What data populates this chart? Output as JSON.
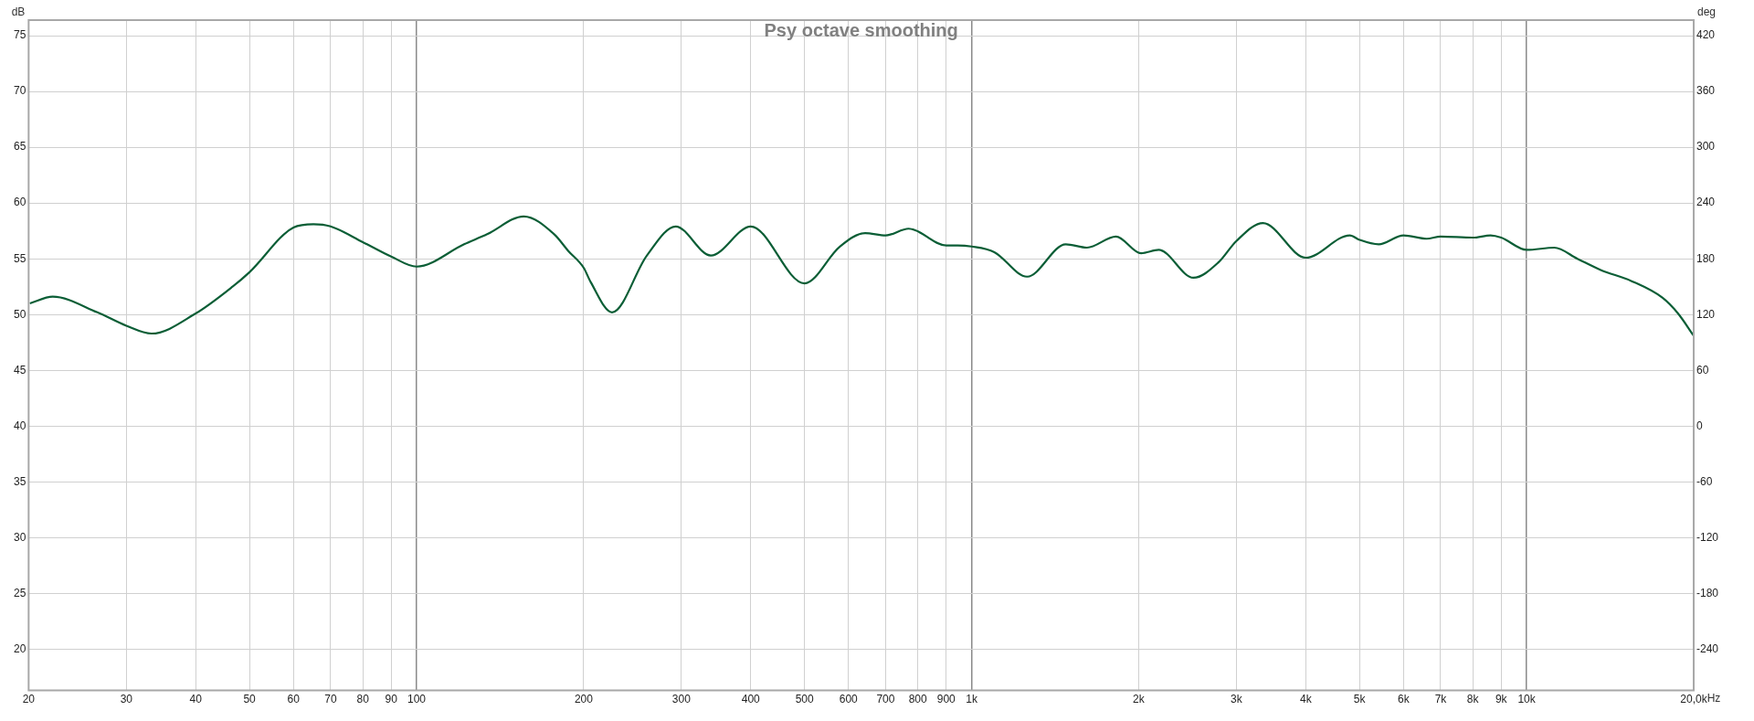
{
  "chart_data": {
    "type": "line",
    "title": "Psy octave smoothing",
    "ylabel": "dB",
    "y2label": "deg",
    "x": [
      20.1,
      22.1,
      26.6,
      30,
      33.3,
      40,
      46.6,
      50,
      60,
      65.2,
      70,
      80,
      90,
      100,
      121.8,
      134,
      156,
      177,
      187.7,
      200,
      206,
      225,
      260,
      293,
      339,
      400,
      500,
      579,
      643,
      700,
      770,
      900,
      944,
      1000,
      1099,
      1259,
      1478,
      1614,
      1820,
      2020,
      2174,
      2510,
      2787,
      3000,
      3350,
      4000,
      4803,
      5000,
      5414,
      6000,
      6608,
      7000,
      8000,
      8610,
      9000,
      10000,
      11220,
      12350,
      13600,
      15460,
      17580,
      18740,
      20000
    ],
    "series": [
      {
        "color": "#0b5e36",
        "values": [
          51.0,
          51.6,
          50.2,
          49.0,
          48.3,
          50.1,
          52.5,
          53.8,
          57.8,
          58.1,
          57.9,
          56.5,
          55.2,
          54.3,
          56.3,
          57.2,
          58.8,
          57.2,
          55.7,
          54.2,
          52.9,
          50.2,
          55.3,
          57.9,
          55.3,
          57.9,
          52.8,
          56.1,
          57.3,
          57.1,
          57.7,
          56.2,
          56.2,
          56.1,
          55.6,
          53.4,
          56.3,
          56.0,
          57.0,
          55.5,
          55.8,
          53.3,
          54.7,
          56.6,
          58.2,
          55.1,
          57.1,
          56.7,
          56.3,
          57.1,
          56.8,
          57.0,
          56.9,
          57.1,
          56.9,
          55.8,
          56.0,
          55.0,
          54.0,
          53.0,
          51.5,
          50.1,
          48.1
        ]
      }
    ],
    "log": "x",
    "grid": true,
    "marker": "none",
    "line_style": "solid",
    "legend": false,
    "xlim": [
      20,
      20000
    ],
    "xticks": [
      20,
      30,
      40,
      50,
      60,
      70,
      80,
      90,
      100,
      200,
      300,
      400,
      500,
      600,
      700,
      800,
      900,
      {
        "value": 1000,
        "label": "1k"
      },
      {
        "value": 2000,
        "label": "2k"
      },
      {
        "value": 3000,
        "label": "3k"
      },
      {
        "value": 4000,
        "label": "4k"
      },
      {
        "value": 5000,
        "label": "5k"
      },
      {
        "value": 6000,
        "label": "6k"
      },
      {
        "value": 7000,
        "label": "7k"
      },
      {
        "value": 8000,
        "label": "8k"
      },
      {
        "value": 9000,
        "label": "9k"
      },
      {
        "value": 10000,
        "label": "10k"
      },
      {
        "value": 20000,
        "label": "20,0k"
      }
    ],
    "xlabel": "Hz",
    "ylim": [
      16.3,
      76.4
    ],
    "yticks": [
      20,
      25,
      30,
      35,
      40,
      45,
      50,
      55,
      60,
      65,
      70,
      75
    ],
    "y2lim": [
      -284.4,
      436.8
    ],
    "y2ticks": [
      -240,
      -180,
      -120,
      -60,
      0,
      60,
      120,
      180,
      240,
      300,
      360,
      420
    ]
  }
}
